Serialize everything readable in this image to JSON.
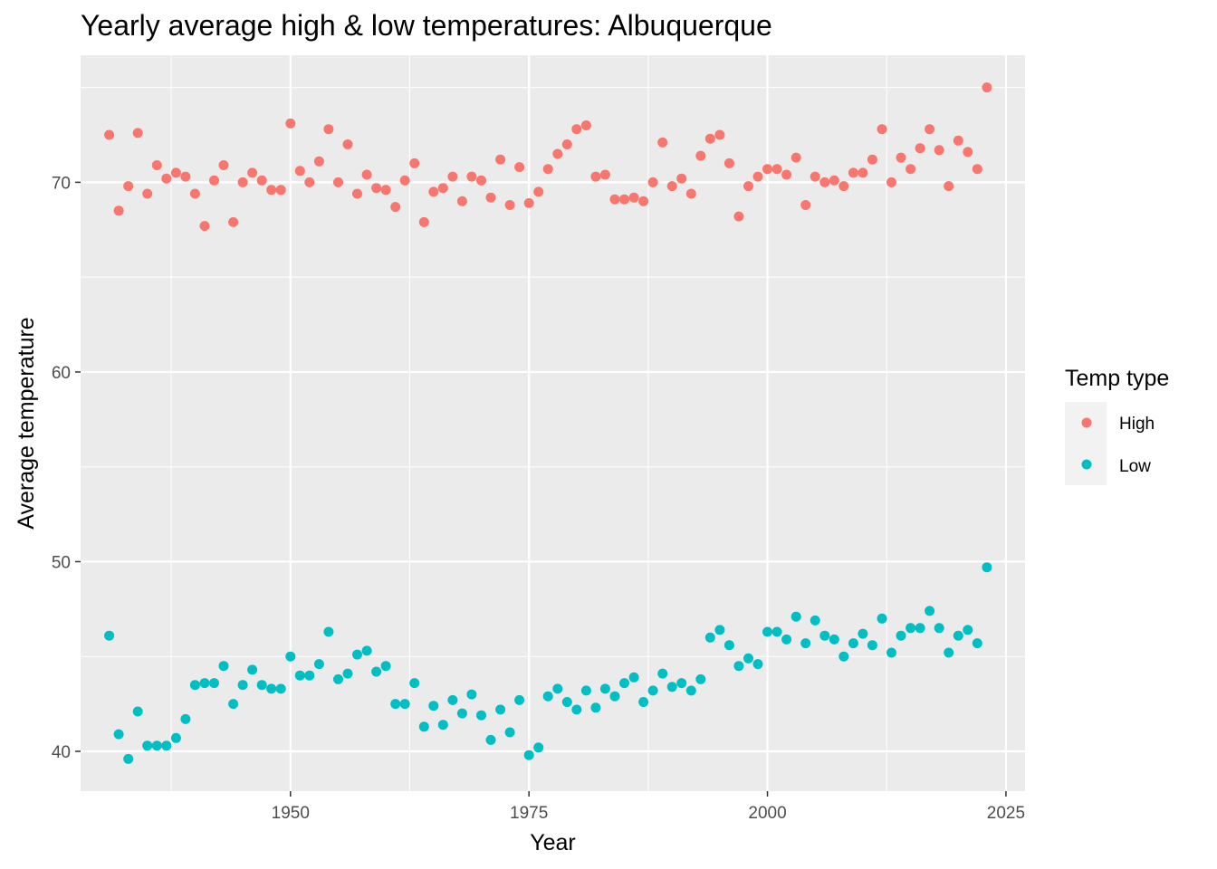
{
  "chart_data": {
    "type": "scatter",
    "title": "Yearly average high & low temperatures: Albuquerque",
    "xlabel": "Year",
    "ylabel": "Average temperature",
    "xlim": [
      1928,
      2027
    ],
    "ylim": [
      37.9,
      76.7
    ],
    "x_ticks": [
      1950,
      1975,
      2000,
      2025
    ],
    "y_ticks": [
      40,
      50,
      60,
      70
    ],
    "grid": true,
    "legend": {
      "title": "Temp type",
      "position": "right"
    },
    "series": [
      {
        "name": "High",
        "color": "#F8766D",
        "x": [
          1931,
          1932,
          1933,
          1934,
          1935,
          1936,
          1937,
          1938,
          1939,
          1940,
          1941,
          1942,
          1943,
          1944,
          1945,
          1946,
          1947,
          1948,
          1949,
          1950,
          1951,
          1952,
          1953,
          1954,
          1955,
          1956,
          1957,
          1958,
          1959,
          1960,
          1961,
          1962,
          1963,
          1964,
          1965,
          1966,
          1967,
          1968,
          1969,
          1970,
          1971,
          1972,
          1973,
          1974,
          1975,
          1976,
          1977,
          1978,
          1979,
          1980,
          1981,
          1982,
          1983,
          1984,
          1985,
          1986,
          1987,
          1988,
          1989,
          1990,
          1991,
          1992,
          1993,
          1994,
          1995,
          1996,
          1997,
          1998,
          1999,
          2000,
          2001,
          2002,
          2003,
          2004,
          2005,
          2006,
          2007,
          2008,
          2009,
          2010,
          2011,
          2012,
          2013,
          2014,
          2015,
          2016,
          2017,
          2018,
          2019,
          2020,
          2021,
          2022,
          2023
        ],
        "values": [
          72.5,
          68.5,
          69.8,
          72.6,
          69.4,
          70.9,
          70.2,
          70.5,
          70.3,
          69.4,
          67.7,
          70.1,
          70.9,
          67.9,
          70.0,
          70.5,
          70.1,
          69.6,
          69.6,
          73.1,
          70.6,
          70.0,
          71.1,
          72.8,
          70.0,
          72.0,
          69.4,
          70.4,
          69.7,
          69.6,
          68.7,
          70.1,
          71.0,
          67.9,
          69.5,
          69.7,
          70.3,
          69.0,
          70.3,
          70.1,
          69.2,
          71.2,
          68.8,
          70.8,
          68.9,
          69.5,
          70.7,
          71.5,
          72.0,
          72.8,
          73.0,
          70.3,
          70.4,
          69.1,
          69.1,
          69.2,
          69.0,
          70.0,
          72.1,
          69.8,
          70.2,
          69.4,
          71.4,
          72.3,
          72.5,
          71.0,
          68.2,
          69.8,
          70.3,
          70.7,
          70.7,
          70.4,
          71.3,
          68.8,
          70.3,
          70.0,
          70.1,
          69.8,
          70.5,
          70.5,
          71.2,
          72.8,
          70.0,
          71.3,
          70.7,
          71.8,
          72.8,
          71.7,
          69.8,
          72.2,
          71.6,
          70.7,
          75.0
        ]
      },
      {
        "name": "Low",
        "color": "#00BFC4",
        "x": [
          1931,
          1932,
          1933,
          1934,
          1935,
          1936,
          1937,
          1938,
          1939,
          1940,
          1941,
          1942,
          1943,
          1944,
          1945,
          1946,
          1947,
          1948,
          1949,
          1950,
          1951,
          1952,
          1953,
          1954,
          1955,
          1956,
          1957,
          1958,
          1959,
          1960,
          1961,
          1962,
          1963,
          1964,
          1965,
          1966,
          1967,
          1968,
          1969,
          1970,
          1971,
          1972,
          1973,
          1974,
          1975,
          1976,
          1977,
          1978,
          1979,
          1980,
          1981,
          1982,
          1983,
          1984,
          1985,
          1986,
          1987,
          1988,
          1989,
          1990,
          1991,
          1992,
          1993,
          1994,
          1995,
          1996,
          1997,
          1998,
          1999,
          2000,
          2001,
          2002,
          2003,
          2004,
          2005,
          2006,
          2007,
          2008,
          2009,
          2010,
          2011,
          2012,
          2013,
          2014,
          2015,
          2016,
          2017,
          2018,
          2019,
          2020,
          2021,
          2022,
          2023
        ],
        "values": [
          46.1,
          40.9,
          39.6,
          42.1,
          40.3,
          40.3,
          40.3,
          40.7,
          41.7,
          43.5,
          43.6,
          43.6,
          44.5,
          42.5,
          43.5,
          44.3,
          43.5,
          43.3,
          43.3,
          45.0,
          44.0,
          44.0,
          44.6,
          46.3,
          43.8,
          44.1,
          45.1,
          45.3,
          44.2,
          44.5,
          42.5,
          42.5,
          43.6,
          41.3,
          42.4,
          41.4,
          42.7,
          42.0,
          43.0,
          41.9,
          40.6,
          42.2,
          41.0,
          42.7,
          39.8,
          40.2,
          42.9,
          43.3,
          42.6,
          42.2,
          43.2,
          42.3,
          43.3,
          42.9,
          43.6,
          43.9,
          42.6,
          43.2,
          44.1,
          43.4,
          43.6,
          43.2,
          43.8,
          46.0,
          46.4,
          45.6,
          44.5,
          44.9,
          44.6,
          46.3,
          46.3,
          45.9,
          47.1,
          45.7,
          46.9,
          46.1,
          45.9,
          45.0,
          45.7,
          46.2,
          45.6,
          47.0,
          45.2,
          46.1,
          46.5,
          46.5,
          47.4,
          46.5,
          45.2,
          46.1,
          46.4,
          45.7,
          49.7
        ]
      }
    ]
  }
}
